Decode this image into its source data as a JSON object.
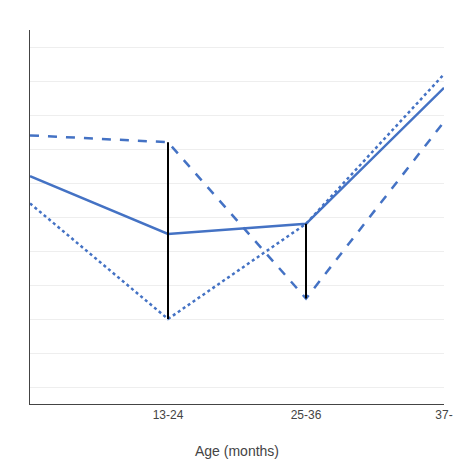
{
  "chart_data": {
    "type": "line",
    "x_label": "Age (months)",
    "categories": [
      null,
      "13-24",
      "25-36",
      "37-"
    ],
    "series": [
      {
        "color": "#4472C4",
        "line_style": "solid",
        "values": [
          0.62,
          0.45,
          0.48,
          0.88
        ]
      },
      {
        "color": "#4472C4",
        "line_style": "dashed",
        "values": [
          0.74,
          0.72,
          0.26,
          0.78
        ]
      },
      {
        "color": "#4472C4",
        "line_style": "dotted",
        "values": [
          0.54,
          0.2,
          0.48,
          0.92
        ]
      }
    ],
    "range_lines": {
      "color": "#000000",
      "low": [
        null,
        0.2,
        0.26,
        null
      ],
      "high": [
        null,
        0.72,
        0.48,
        null
      ]
    },
    "ylim": [
      -0.05,
      1.05
    ],
    "yticks": [
      0.0,
      0.1,
      0.2,
      0.3,
      0.4,
      0.5,
      0.6,
      0.7,
      0.8,
      0.9,
      1.0
    ],
    "grid": true,
    "tick_labels": "x"
  }
}
